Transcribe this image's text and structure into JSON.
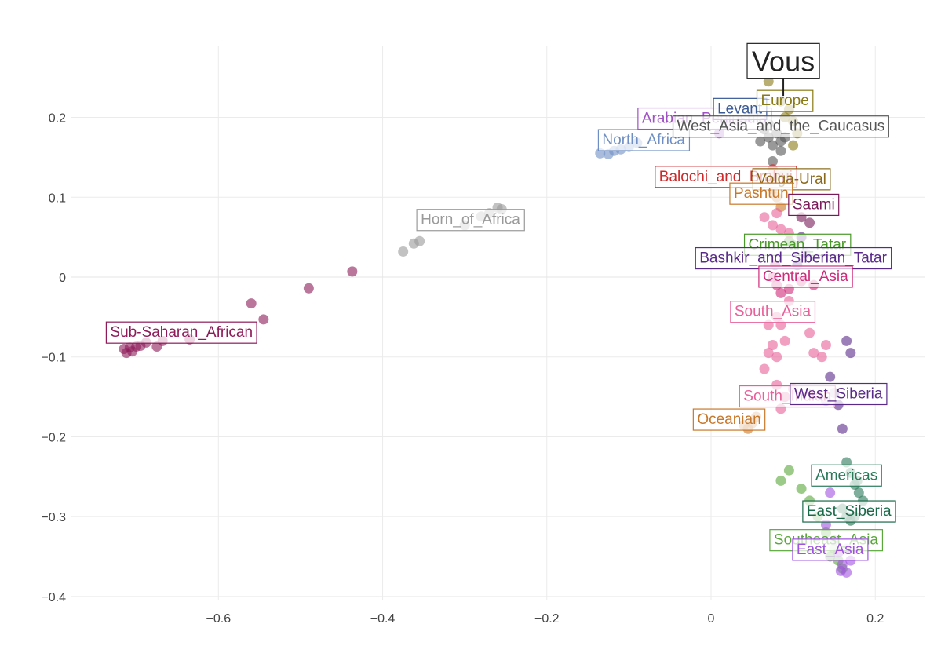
{
  "chart_data": {
    "type": "scatter",
    "title": "",
    "xlabel": "",
    "ylabel": "",
    "xlim": [
      -0.78,
      0.26
    ],
    "ylim": [
      -0.405,
      0.29
    ],
    "xticks": [
      -0.6,
      -0.4,
      -0.2,
      0,
      0.2
    ],
    "xtick_labels": [
      "−0.6",
      "−0.4",
      "−0.2",
      "0",
      "0.2"
    ],
    "yticks": [
      0.2,
      0.1,
      0,
      -0.1,
      -0.2,
      -0.3,
      -0.4
    ],
    "ytick_labels": [
      "0.2",
      "0.1",
      "0",
      "−0.1",
      "−0.2",
      "−0.3",
      "−0.4"
    ],
    "grid": true,
    "legend": "none",
    "vous": {
      "label": "Vous",
      "x": 0.088,
      "y": 0.227,
      "label_x": 0.088,
      "label_y": 0.27
    },
    "groups": [
      {
        "name": "Sub-Saharan_African",
        "color": "#8e1a5a",
        "label_x": -0.645,
        "label_y": -0.068,
        "points": [
          [
            -0.715,
            -0.09
          ],
          [
            -0.712,
            -0.095
          ],
          [
            -0.708,
            -0.088
          ],
          [
            -0.705,
            -0.093
          ],
          [
            -0.7,
            -0.087
          ],
          [
            -0.695,
            -0.086
          ],
          [
            -0.688,
            -0.082
          ],
          [
            -0.675,
            -0.087
          ],
          [
            -0.668,
            -0.08
          ],
          [
            -0.635,
            -0.078
          ],
          [
            -0.56,
            -0.033
          ],
          [
            -0.545,
            -0.053
          ],
          [
            -0.49,
            -0.014
          ],
          [
            -0.437,
            0.007
          ]
        ]
      },
      {
        "name": "Horn_of_Africa",
        "color": "#9a9a9a",
        "label_x": -0.293,
        "label_y": 0.073,
        "points": [
          [
            -0.375,
            0.032
          ],
          [
            -0.362,
            0.042
          ],
          [
            -0.355,
            0.045
          ],
          [
            -0.3,
            0.065
          ],
          [
            -0.28,
            0.076
          ],
          [
            -0.27,
            0.08
          ],
          [
            -0.26,
            0.087
          ],
          [
            -0.255,
            0.085
          ]
        ]
      },
      {
        "name": "North_Africa",
        "color": "#6f8fc4",
        "label_x": -0.082,
        "label_y": 0.173,
        "points": [
          [
            -0.135,
            0.155
          ],
          [
            -0.125,
            0.154
          ],
          [
            -0.118,
            0.158
          ],
          [
            -0.11,
            0.16
          ],
          [
            -0.1,
            0.163
          ],
          [
            -0.09,
            0.168
          ]
        ]
      },
      {
        "name": "Arabian_Peninsula",
        "color": "#a052c4",
        "label_x": -0.008,
        "label_y": 0.2,
        "points": [
          [
            0.01,
            0.18
          ],
          [
            0.02,
            0.19
          ],
          [
            0.035,
            0.195
          ]
        ]
      },
      {
        "name": "Levant",
        "color": "#3a5a96",
        "label_x": 0.035,
        "label_y": 0.212,
        "points": [
          [
            0.045,
            0.2
          ],
          [
            0.055,
            0.205
          ]
        ]
      },
      {
        "name": "Europe",
        "color": "#8a7a14",
        "label_x": 0.09,
        "label_y": 0.222,
        "points": [
          [
            0.07,
            0.245
          ],
          [
            0.085,
            0.22
          ],
          [
            0.095,
            0.21
          ],
          [
            0.1,
            0.195
          ],
          [
            0.105,
            0.18
          ],
          [
            0.1,
            0.165
          ],
          [
            0.09,
            0.2
          ]
        ]
      },
      {
        "name": "West_Asia_and_the_Caucasus",
        "color": "#555555",
        "label_x": 0.085,
        "label_y": 0.19,
        "points": [
          [
            0.06,
            0.17
          ],
          [
            0.07,
            0.175
          ],
          [
            0.075,
            0.165
          ],
          [
            0.08,
            0.18
          ],
          [
            0.085,
            0.17
          ],
          [
            0.09,
            0.175
          ],
          [
            0.085,
            0.158
          ],
          [
            0.075,
            0.145
          ],
          [
            0.065,
            0.185
          ],
          [
            0.07,
            0.192
          ]
        ]
      },
      {
        "name": "Balochi_and_Brahui",
        "color": "#cc2a2a",
        "label_x": 0.018,
        "label_y": 0.127,
        "points": [
          [
            0.075,
            0.135
          ],
          [
            0.08,
            0.128
          ],
          [
            0.072,
            0.12
          ]
        ]
      },
      {
        "name": "Volga-Ural",
        "color": "#8a6a1a",
        "label_x": 0.098,
        "label_y": 0.124,
        "points": [
          [
            0.09,
            0.13
          ],
          [
            0.1,
            0.118
          ]
        ]
      },
      {
        "name": "Pashtun",
        "color": "#c8782a",
        "label_x": 0.061,
        "label_y": 0.106,
        "points": [
          [
            0.075,
            0.11
          ],
          [
            0.08,
            0.1
          ],
          [
            0.085,
            0.088
          ]
        ]
      },
      {
        "name": "Saami",
        "color": "#7a1a5a",
        "label_x": 0.125,
        "label_y": 0.092,
        "points": [
          [
            0.11,
            0.075
          ],
          [
            0.12,
            0.068
          ]
        ]
      },
      {
        "name": "Crimean_Tatar",
        "color": "#4a9a2a",
        "label_x": 0.105,
        "label_y": 0.042,
        "points": [
          [
            0.095,
            0.045
          ],
          [
            0.1,
            0.04
          ]
        ]
      },
      {
        "name": "Bashkir_and_Siberian_Tatar",
        "color": "#5a2a8a",
        "label_x": 0.1,
        "label_y": 0.025,
        "points": [
          [
            0.11,
            0.05
          ],
          [
            0.115,
            0.03
          ],
          [
            0.105,
            0.015
          ]
        ]
      },
      {
        "name": "Central_Asia",
        "color": "#d02a7a",
        "label_x": 0.115,
        "label_y": 0.002,
        "points": [
          [
            0.075,
            0.0
          ],
          [
            0.08,
            -0.01
          ],
          [
            0.085,
            -0.02
          ],
          [
            0.095,
            -0.015
          ],
          [
            0.11,
            -0.005
          ],
          [
            0.125,
            -0.01
          ],
          [
            0.078,
            0.015
          ]
        ]
      },
      {
        "name": "South_Asia",
        "color": "#e8609a",
        "label_x": 0.075,
        "label_y": -0.042,
        "points": [
          [
            0.08,
            -0.05
          ],
          [
            0.085,
            -0.06
          ],
          [
            0.09,
            -0.08
          ],
          [
            0.075,
            -0.085
          ],
          [
            0.07,
            -0.095
          ],
          [
            0.08,
            -0.1
          ],
          [
            0.065,
            -0.115
          ],
          [
            0.095,
            -0.03
          ],
          [
            0.12,
            -0.07
          ],
          [
            0.125,
            -0.095
          ],
          [
            0.135,
            -0.1
          ],
          [
            0.14,
            -0.085
          ],
          [
            0.07,
            -0.06
          ],
          [
            0.065,
            0.075
          ],
          [
            0.075,
            0.065
          ],
          [
            0.085,
            0.06
          ],
          [
            0.095,
            0.055
          ],
          [
            0.08,
            0.08
          ]
        ]
      },
      {
        "name": "South_Indian",
        "color": "#e8609a",
        "label_x": 0.093,
        "label_y": -0.148,
        "points": [
          [
            0.08,
            -0.135
          ],
          [
            0.09,
            -0.15
          ],
          [
            0.085,
            -0.165
          ],
          [
            0.1,
            -0.14
          ]
        ]
      },
      {
        "name": "West_Siberia",
        "color": "#5a2a8a",
        "label_x": 0.155,
        "label_y": -0.145,
        "points": [
          [
            0.145,
            -0.125
          ],
          [
            0.15,
            -0.145
          ],
          [
            0.155,
            -0.16
          ],
          [
            0.16,
            -0.19
          ],
          [
            0.165,
            -0.08
          ],
          [
            0.17,
            -0.095
          ],
          [
            0.14,
            -0.155
          ]
        ]
      },
      {
        "name": "Oceanian",
        "color": "#c8782a",
        "label_x": 0.022,
        "label_y": -0.177,
        "points": [
          [
            0.04,
            -0.185
          ],
          [
            0.045,
            -0.19
          ],
          [
            0.05,
            -0.183
          ],
          [
            0.055,
            -0.175
          ]
        ]
      },
      {
        "name": "Americas",
        "color": "#2a7a5a",
        "label_x": 0.165,
        "label_y": -0.247,
        "points": [
          [
            0.165,
            -0.232
          ],
          [
            0.17,
            -0.245
          ],
          [
            0.175,
            -0.26
          ],
          [
            0.18,
            -0.27
          ],
          [
            0.185,
            -0.28
          ],
          [
            0.178,
            -0.255
          ]
        ]
      },
      {
        "name": "East_Siberia",
        "color": "#1a6a4a",
        "label_x": 0.168,
        "label_y": -0.292,
        "points": [
          [
            0.16,
            -0.29
          ],
          [
            0.165,
            -0.3
          ],
          [
            0.17,
            -0.305
          ],
          [
            0.175,
            -0.3
          ]
        ]
      },
      {
        "name": "Southeast_Asia",
        "color": "#5aa83a",
        "label_x": 0.14,
        "label_y": -0.328,
        "points": [
          [
            0.095,
            -0.242
          ],
          [
            0.085,
            -0.255
          ],
          [
            0.11,
            -0.265
          ],
          [
            0.12,
            -0.28
          ],
          [
            0.13,
            -0.3
          ],
          [
            0.14,
            -0.32
          ],
          [
            0.15,
            -0.34
          ],
          [
            0.155,
            -0.355
          ],
          [
            0.16,
            -0.365
          ],
          [
            0.145,
            -0.35
          ]
        ]
      },
      {
        "name": "East_Asia",
        "color": "#a052e0",
        "label_x": 0.145,
        "label_y": -0.34,
        "points": [
          [
            0.15,
            -0.33
          ],
          [
            0.155,
            -0.345
          ],
          [
            0.16,
            -0.36
          ],
          [
            0.165,
            -0.37
          ],
          [
            0.17,
            -0.355
          ],
          [
            0.165,
            -0.34
          ],
          [
            0.158,
            -0.368
          ],
          [
            0.14,
            -0.31
          ],
          [
            0.145,
            -0.27
          ]
        ]
      }
    ]
  }
}
